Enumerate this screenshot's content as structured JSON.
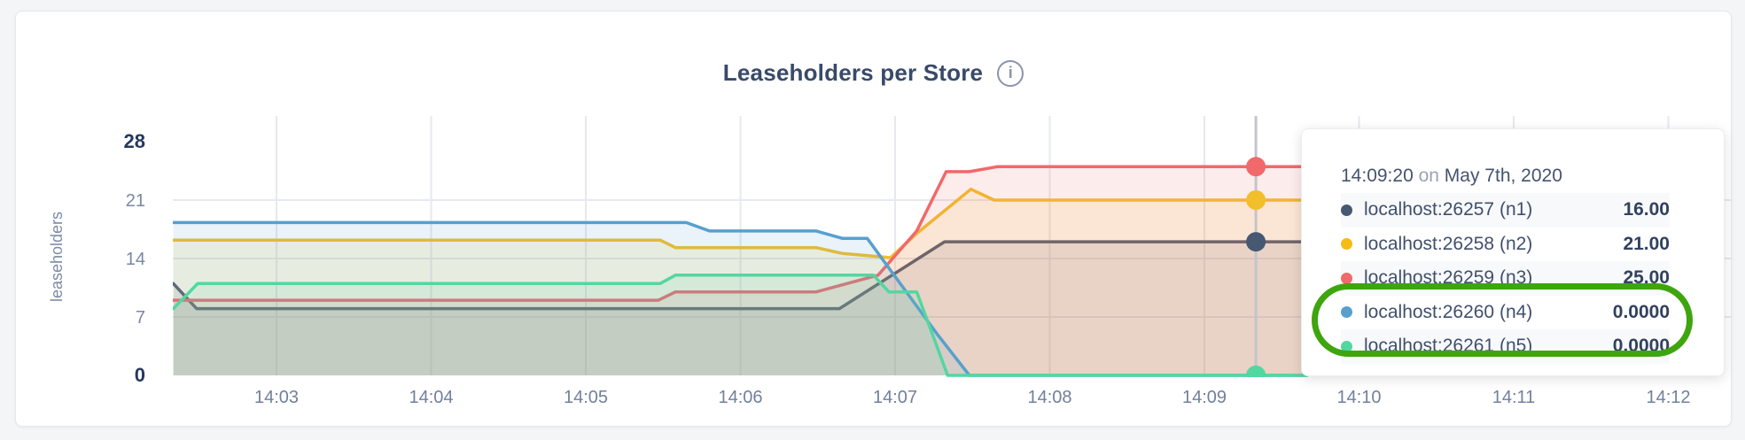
{
  "page": {
    "background": "#f4f5f7",
    "card_background": "#ffffff"
  },
  "chart": {
    "title": "Leaseholders per Store",
    "info_icon_glyph": "i"
  },
  "tooltip": {
    "time": "14:09:20",
    "separator": "on",
    "date": "May 7th, 2020",
    "annotation_color": "#3ea50e",
    "rows": [
      {
        "label": "localhost:26257 (n1)",
        "value": "16.00",
        "color": "#475872",
        "highlighted": false
      },
      {
        "label": "localhost:26258 (n2)",
        "value": "21.00",
        "color": "#f5bb16",
        "highlighted": false
      },
      {
        "label": "localhost:26259 (n3)",
        "value": "25.00",
        "color": "#f0696b",
        "highlighted": false
      },
      {
        "label": "localhost:26260 (n4)",
        "value": "0.0000",
        "color": "#57a0ce",
        "highlighted": true
      },
      {
        "label": "localhost:26261 (n5)",
        "value": "0.0000",
        "color": "#52d7a0",
        "highlighted": true
      }
    ]
  },
  "chart_data": {
    "type": "area",
    "title": "Leaseholders per Store",
    "ylabel": "leaseholders",
    "xlabel": "",
    "ylim": [
      0,
      28
    ],
    "y_ticks": [
      0,
      7,
      14,
      21,
      28
    ],
    "x_ticks": [
      "14:03",
      "14:04",
      "14:05",
      "14:06",
      "14:07",
      "14:08",
      "14:09",
      "14:10",
      "14:11",
      "14:12"
    ],
    "grid": "on",
    "legend_position": "tooltip",
    "hover_time": "14:09:20",
    "hover_time_minutes": 9.333,
    "time_domain_minutes_after_1400": [
      2.333,
      12.45
    ],
    "series": [
      {
        "name": "localhost:26257 (n1)",
        "color": "#475872",
        "hover_value": 16,
        "points": [
          [
            2.333,
            11
          ],
          [
            2.483,
            8
          ],
          [
            6.64,
            8
          ],
          [
            7.32,
            16
          ],
          [
            9.67,
            16
          ]
        ]
      },
      {
        "name": "localhost:26258 (n2)",
        "color": "#f2be2b",
        "hover_value": 21,
        "points": [
          [
            2.333,
            16.2
          ],
          [
            5.48,
            16.2
          ],
          [
            5.58,
            15.3
          ],
          [
            6.49,
            15.3
          ],
          [
            6.66,
            14.6
          ],
          [
            6.97,
            14.1
          ],
          [
            7.14,
            17
          ],
          [
            7.49,
            22.3
          ],
          [
            7.64,
            21
          ],
          [
            9.67,
            21
          ]
        ]
      },
      {
        "name": "localhost:26259 (n3)",
        "color": "#f0696b",
        "hover_value": 25,
        "points": [
          [
            2.333,
            9
          ],
          [
            5.47,
            9
          ],
          [
            5.58,
            10
          ],
          [
            6.49,
            10
          ],
          [
            6.89,
            12
          ],
          [
            7.14,
            17.3
          ],
          [
            7.33,
            24.4
          ],
          [
            7.48,
            24.4
          ],
          [
            7.66,
            25
          ],
          [
            9.67,
            25
          ]
        ]
      },
      {
        "name": "localhost:26260 (n4)",
        "color": "#57a0ce",
        "hover_value": 0,
        "points": [
          [
            2.333,
            18.3
          ],
          [
            5.65,
            18.3
          ],
          [
            5.8,
            17.3
          ],
          [
            6.49,
            17.3
          ],
          [
            6.66,
            16.4
          ],
          [
            6.82,
            16.4
          ],
          [
            7.27,
            5
          ],
          [
            7.48,
            0
          ],
          [
            9.67,
            0
          ]
        ]
      },
      {
        "name": "localhost:26261 (n5)",
        "color": "#52d7a0",
        "hover_value": 0,
        "points": [
          [
            2.333,
            8
          ],
          [
            2.49,
            11
          ],
          [
            5.48,
            11
          ],
          [
            5.58,
            12
          ],
          [
            6.86,
            12
          ],
          [
            6.96,
            10
          ],
          [
            7.14,
            10
          ],
          [
            7.34,
            0
          ],
          [
            9.67,
            0
          ]
        ]
      }
    ]
  }
}
